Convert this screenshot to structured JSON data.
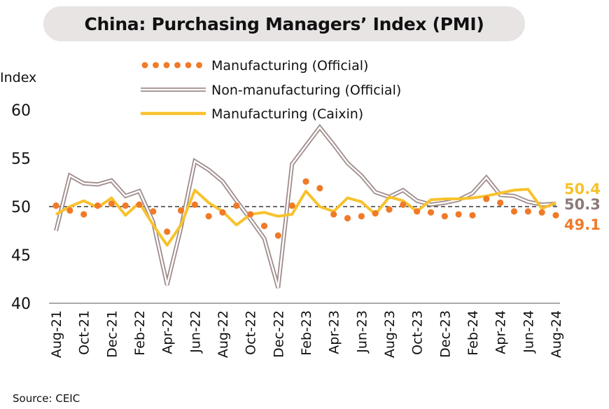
{
  "title": "China: Purchasing Managers’ Index (PMI)",
  "source": "Source: CEIC",
  "chart_data": {
    "type": "line",
    "ylabel": "Index",
    "ylim": [
      40,
      60
    ],
    "yticks": [
      40,
      45,
      50,
      55,
      60
    ],
    "reference_line": 50,
    "legend_position": "top-center",
    "colors": {
      "manufacturing_official": "#f07a28",
      "non_manufacturing_outer": "#a08c8c",
      "manufacturing_caixin": "#f8c22c",
      "end_label_mfg_official": "#f07a28",
      "end_label_nonmfg": "#8c7a7a",
      "end_label_caixin": "#f8c22c"
    },
    "x": [
      "Aug-21",
      "Sep-21",
      "Oct-21",
      "Nov-21",
      "Dec-21",
      "Jan-22",
      "Feb-22",
      "Mar-22",
      "Apr-22",
      "May-22",
      "Jun-22",
      "Jul-22",
      "Aug-22",
      "Sep-22",
      "Oct-22",
      "Nov-22",
      "Dec-22",
      "Jan-23",
      "Feb-23",
      "Mar-23",
      "Apr-23",
      "May-23",
      "Jun-23",
      "Jul-23",
      "Aug-23",
      "Sep-23",
      "Oct-23",
      "Nov-23",
      "Dec-23",
      "Jan-24",
      "Feb-24",
      "Mar-24",
      "Apr-24",
      "May-24",
      "Jun-24",
      "Jul-24",
      "Aug-24"
    ],
    "xtick_labels": [
      "Aug-21",
      "Oct-21",
      "Dec-21",
      "Feb-22",
      "Apr-22",
      "Jun-22",
      "Aug-22",
      "Oct-22",
      "Dec-22",
      "Feb-23",
      "Apr-23",
      "Jun-23",
      "Aug-23",
      "Oct-23",
      "Dec-23",
      "Feb-24",
      "Apr-24",
      "Jun-24",
      "Aug-24"
    ],
    "series": [
      {
        "name": "Manufacturing (Official)",
        "style": "dotted",
        "values": [
          50.1,
          49.6,
          49.2,
          50.1,
          50.3,
          50.1,
          50.2,
          49.5,
          47.4,
          49.6,
          50.2,
          49.0,
          49.4,
          50.1,
          49.2,
          48.0,
          47.0,
          50.1,
          52.6,
          51.9,
          49.2,
          48.8,
          49.0,
          49.3,
          49.7,
          50.2,
          49.5,
          49.4,
          49.0,
          49.2,
          49.1,
          50.8,
          50.4,
          49.5,
          49.5,
          49.4,
          49.1
        ]
      },
      {
        "name": "Non-manufacturing (Official)",
        "style": "double",
        "values": [
          47.5,
          53.2,
          52.4,
          52.3,
          52.7,
          51.1,
          51.6,
          48.4,
          41.9,
          47.8,
          54.7,
          53.8,
          52.6,
          50.6,
          48.7,
          46.7,
          41.6,
          54.4,
          56.3,
          58.2,
          56.4,
          54.5,
          53.2,
          51.5,
          51.0,
          51.7,
          50.6,
          50.2,
          50.4,
          50.7,
          51.4,
          53.0,
          51.2,
          51.1,
          50.5,
          50.2,
          50.3
        ]
      },
      {
        "name": "Manufacturing (Caixin)",
        "style": "solid",
        "values": [
          49.2,
          50.0,
          50.6,
          49.9,
          50.9,
          49.1,
          50.4,
          48.1,
          46.0,
          48.1,
          51.7,
          50.4,
          49.5,
          48.1,
          49.2,
          49.4,
          49.0,
          49.2,
          51.6,
          50.0,
          49.5,
          50.9,
          50.5,
          49.2,
          51.0,
          50.6,
          49.5,
          50.7,
          50.8,
          50.8,
          50.9,
          51.1,
          51.4,
          51.7,
          51.8,
          49.8,
          50.4
        ]
      }
    ],
    "end_labels": {
      "caixin": "50.4",
      "non_manufacturing": "50.3",
      "manufacturing_official": "49.1"
    }
  }
}
